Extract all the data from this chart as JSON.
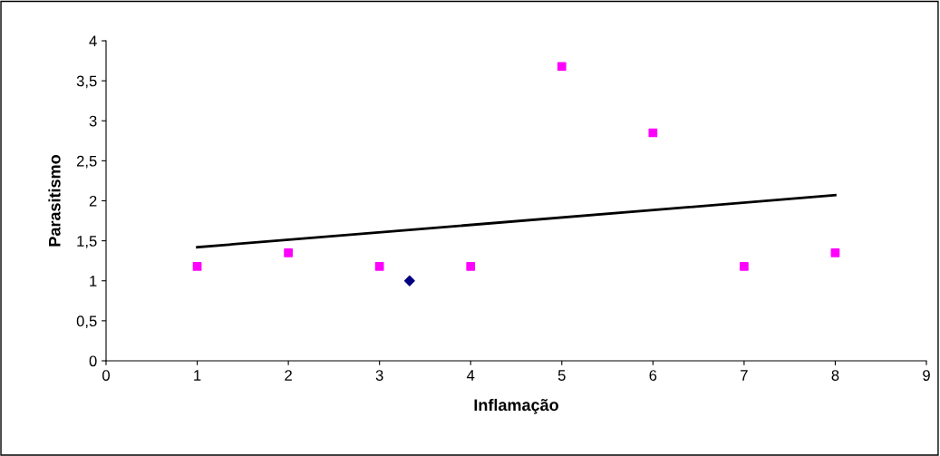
{
  "chart_data": {
    "type": "scatter",
    "xlabel": "Inflamação",
    "ylabel": "Parasitismo",
    "xlim": [
      0,
      9
    ],
    "xticks": [
      0,
      1,
      2,
      3,
      4,
      5,
      6,
      7,
      8,
      9
    ],
    "ylim": [
      0,
      4
    ],
    "yticks": [
      0,
      {
        "value": 0.5,
        "label": "0,5"
      },
      1,
      {
        "value": 1.5,
        "label": "1,5"
      },
      2,
      {
        "value": 2.5,
        "label": "2,5"
      },
      3,
      {
        "value": 3.5,
        "label": "3,5"
      },
      4
    ],
    "grid": false,
    "legend": false,
    "series": [
      {
        "type": "scatter",
        "marker": "square",
        "color": "#ff00ff",
        "x": [
          1,
          2,
          3,
          4,
          5,
          6,
          7,
          8
        ],
        "values": [
          1.18,
          1.35,
          1.18,
          1.18,
          3.68,
          2.85,
          1.18,
          1.35
        ]
      },
      {
        "type": "scatter",
        "marker": "diamond",
        "color": "#000080",
        "x": [
          3.33
        ],
        "values": [
          1.0
        ]
      },
      {
        "type": "line",
        "marker": "none",
        "line_style": "solid",
        "color": "#000000",
        "x": [
          1,
          8
        ],
        "values": [
          1.42,
          2.07
        ]
      }
    ]
  }
}
